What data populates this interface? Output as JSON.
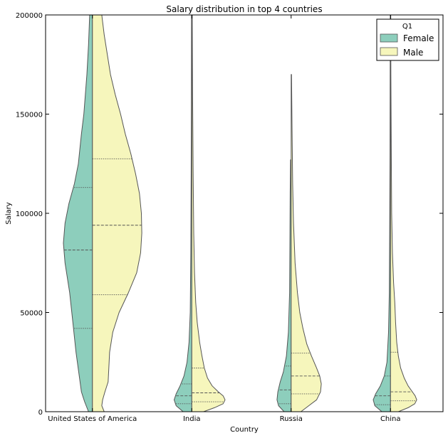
{
  "chart_data": {
    "type": "violin",
    "title": "Salary distribution in top 4 countries",
    "xlabel": "Country",
    "ylabel": "Salary",
    "ylim": [
      0,
      200000
    ],
    "yticks": [
      0,
      50000,
      100000,
      150000,
      200000
    ],
    "ytick_labels": [
      "0",
      "50000",
      "100000",
      "150000",
      "200000"
    ],
    "categories": [
      "United States of America",
      "India",
      "Russia",
      "China"
    ],
    "split": true,
    "legend": {
      "title": "Q1",
      "position": "top-right",
      "entries": [
        {
          "label": "Female",
          "color": "#8dcebc"
        },
        {
          "label": "Male",
          "color": "#f6f6bc"
        }
      ]
    },
    "series": [
      {
        "name": "Female",
        "color": "#8dcebc",
        "profiles": [
          {
            "y": [
              0,
              5000,
              10000,
              20000,
              30000,
              45000,
              60000,
              75000,
              85000,
              95000,
              105000,
              115000,
              125000,
              140000,
              150000,
              170000,
              185000,
              200000
            ],
            "w": [
              0.1,
              0.2,
              0.28,
              0.35,
              0.42,
              0.5,
              0.58,
              0.7,
              0.74,
              0.7,
              0.6,
              0.46,
              0.36,
              0.28,
              0.22,
              0.14,
              0.1,
              0.07
            ],
            "quartiles": [
              42000,
              81500,
              113000
            ]
          },
          {
            "y": [
              0,
              3000,
              6000,
              9000,
              13000,
              18000,
              25000,
              35000,
              50000,
              80000,
              120000,
              160000,
              200000
            ],
            "w": [
              0.22,
              0.4,
              0.45,
              0.4,
              0.3,
              0.2,
              0.12,
              0.07,
              0.04,
              0.025,
              0.015,
              0.01,
              0.006
            ],
            "quartiles": [
              4000,
              8000,
              14000
            ]
          },
          {
            "y": [
              0,
              3000,
              6000,
              10000,
              15000,
              20000,
              28000,
              40000,
              60000,
              90000,
              110000,
              127000
            ],
            "w": [
              0.18,
              0.32,
              0.36,
              0.34,
              0.28,
              0.2,
              0.12,
              0.07,
              0.04,
              0.03,
              0.025,
              0.015
            ],
            "quartiles": [
              4000,
              11000,
              23000
            ]
          },
          {
            "y": [
              0,
              3000,
              6000,
              9000,
              13000,
              18000,
              25000,
              40000,
              60000,
              90000,
              130000,
              170000,
              200000
            ],
            "w": [
              0.22,
              0.4,
              0.44,
              0.38,
              0.26,
              0.16,
              0.09,
              0.05,
              0.03,
              0.02,
              0.012,
              0.008,
              0.005
            ],
            "quartiles": [
              3500,
              8000,
              18000
            ]
          }
        ]
      },
      {
        "name": "Male",
        "color": "#f6f6bc",
        "profiles": [
          {
            "y": [
              0,
              3000,
              6000,
              10000,
              15000,
              22000,
              30000,
              40000,
              50000,
              60000,
              70000,
              80000,
              90000,
              100000,
              110000,
              120000,
              130000,
              140000,
              150000,
              160000,
              170000,
              180000,
              190000,
              200000
            ],
            "w": [
              0.3,
              0.24,
              0.26,
              0.32,
              0.4,
              0.42,
              0.44,
              0.52,
              0.68,
              0.92,
              1.13,
              1.23,
              1.26,
              1.25,
              1.2,
              1.1,
              0.98,
              0.84,
              0.72,
              0.58,
              0.46,
              0.38,
              0.3,
              0.24
            ],
            "quartiles": [
              59000,
              94000,
              127500
            ]
          },
          {
            "y": [
              0,
              2000,
              4000,
              6000,
              8000,
              10000,
              13000,
              17000,
              22000,
              28000,
              35000,
              45000,
              55000,
              70000,
              90000,
              120000,
              160000,
              200000
            ],
            "w": [
              0.3,
              0.58,
              0.8,
              0.85,
              0.8,
              0.68,
              0.52,
              0.4,
              0.32,
              0.26,
              0.2,
              0.14,
              0.1,
              0.07,
              0.05,
              0.035,
              0.02,
              0.012
            ],
            "quartiles": [
              5000,
              9500,
              22000
            ]
          },
          {
            "y": [
              0,
              3000,
              6000,
              10000,
              14000,
              18000,
              22000,
              28000,
              34000,
              42000,
              50000,
              60000,
              75000,
              95000,
              115000,
              140000,
              170000
            ],
            "w": [
              0.25,
              0.45,
              0.65,
              0.75,
              0.77,
              0.73,
              0.65,
              0.52,
              0.4,
              0.3,
              0.22,
              0.16,
              0.1,
              0.06,
              0.04,
              0.025,
              0.01
            ],
            "quartiles": [
              9000,
              18000,
              29500
            ]
          },
          {
            "y": [
              0,
              2000,
              4000,
              6000,
              8000,
              10000,
              13000,
              17000,
              22000,
              28000,
              35000,
              45000,
              55000,
              65000,
              80000,
              100000,
              130000,
              170000,
              200000
            ],
            "w": [
              0.2,
              0.45,
              0.62,
              0.67,
              0.63,
              0.56,
              0.45,
              0.35,
              0.26,
              0.2,
              0.16,
              0.13,
              0.11,
              0.08,
              0.05,
              0.03,
              0.02,
              0.01,
              0.006
            ],
            "quartiles": [
              5500,
              10000,
              30000
            ]
          }
        ]
      }
    ]
  }
}
